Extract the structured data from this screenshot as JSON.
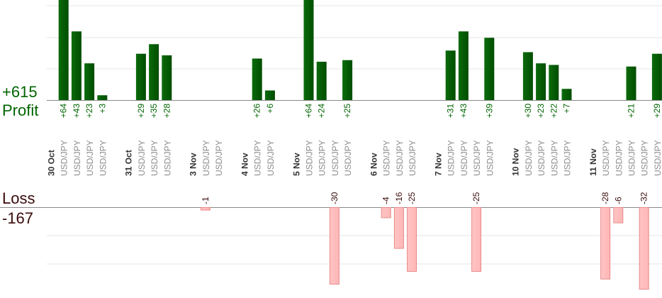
{
  "labels": {
    "profit_total": "+615",
    "profit": "Profit",
    "loss": "Loss",
    "loss_total": "-167"
  },
  "colors": {
    "profit_bar": "#0b6b0b",
    "profit_bar_dark": "#004d00",
    "profit_text": "#006400",
    "loss_bar": "#ffb6b6",
    "loss_bar_border": "#e88a8a",
    "loss_text": "#3a0a0a",
    "date_text": "#333333",
    "symbol_text": "#8c8c8c",
    "axis": "#888888",
    "grid": "#e6e6e6"
  },
  "chart_data": {
    "type": "bar",
    "title": "",
    "profit_ylim": [
      0,
      50
    ],
    "loss_ylim": [
      -30,
      0
    ],
    "grid": true,
    "slots": [
      {
        "kind": "date",
        "label": "30 Oct"
      },
      {
        "kind": "trade",
        "label": "USD/JPY",
        "value": 64
      },
      {
        "kind": "trade",
        "label": "USD/JPY",
        "value": 43
      },
      {
        "kind": "trade",
        "label": "USD/JPY",
        "value": 23
      },
      {
        "kind": "trade",
        "label": "USD/JPY",
        "value": 3
      },
      {
        "kind": "gap"
      },
      {
        "kind": "date",
        "label": "31 Oct"
      },
      {
        "kind": "trade",
        "label": "USD/JPY",
        "value": 29
      },
      {
        "kind": "trade",
        "label": "USD/JPY",
        "value": 35
      },
      {
        "kind": "trade",
        "label": "USD/JPY",
        "value": 28
      },
      {
        "kind": "gap"
      },
      {
        "kind": "date",
        "label": "3 Nov"
      },
      {
        "kind": "trade",
        "label": "USD/JPY",
        "value": -1
      },
      {
        "kind": "trade",
        "label": "USD/JPY",
        "value": null
      },
      {
        "kind": "gap"
      },
      {
        "kind": "date",
        "label": "4 Nov"
      },
      {
        "kind": "trade",
        "label": "USD/JPY",
        "value": 26
      },
      {
        "kind": "trade",
        "label": "USD/JPY",
        "value": 6
      },
      {
        "kind": "gap"
      },
      {
        "kind": "date",
        "label": "5 Nov"
      },
      {
        "kind": "trade",
        "label": "USD/JPY",
        "value": 64
      },
      {
        "kind": "trade",
        "label": "USD/JPY",
        "value": 24
      },
      {
        "kind": "trade",
        "label": "USD/JPY",
        "value": -30
      },
      {
        "kind": "trade",
        "label": "USD/JPY",
        "value": 25
      },
      {
        "kind": "gap"
      },
      {
        "kind": "date",
        "label": "6 Nov"
      },
      {
        "kind": "trade",
        "label": "USD/JPY",
        "value": -4
      },
      {
        "kind": "trade",
        "label": "USD/JPY",
        "value": -16
      },
      {
        "kind": "trade",
        "label": "USD/JPY",
        "value": -25
      },
      {
        "kind": "gap"
      },
      {
        "kind": "date",
        "label": "7 Nov"
      },
      {
        "kind": "trade",
        "label": "USD/JPY",
        "value": 31
      },
      {
        "kind": "trade",
        "label": "USD/JPY",
        "value": 43
      },
      {
        "kind": "trade",
        "label": "USD/JPY",
        "value": -25
      },
      {
        "kind": "trade",
        "label": "USD/JPY",
        "value": 39
      },
      {
        "kind": "gap"
      },
      {
        "kind": "date",
        "label": "10 Nov"
      },
      {
        "kind": "trade",
        "label": "USD/JPY",
        "value": 30
      },
      {
        "kind": "trade",
        "label": "USD/JPY",
        "value": 23
      },
      {
        "kind": "trade",
        "label": "USD/JPY",
        "value": 22
      },
      {
        "kind": "trade",
        "label": "USD/JPY",
        "value": 7
      },
      {
        "kind": "gap"
      },
      {
        "kind": "date",
        "label": "11 Nov"
      },
      {
        "kind": "trade",
        "label": "USD/JPY",
        "value": -28
      },
      {
        "kind": "trade",
        "label": "USD/JPY",
        "value": -6
      },
      {
        "kind": "trade",
        "label": "USD/JPY",
        "value": 21
      },
      {
        "kind": "trade",
        "label": "USD/JPY",
        "value": -32
      },
      {
        "kind": "trade",
        "label": "USD/JPY",
        "value": 29
      }
    ]
  }
}
